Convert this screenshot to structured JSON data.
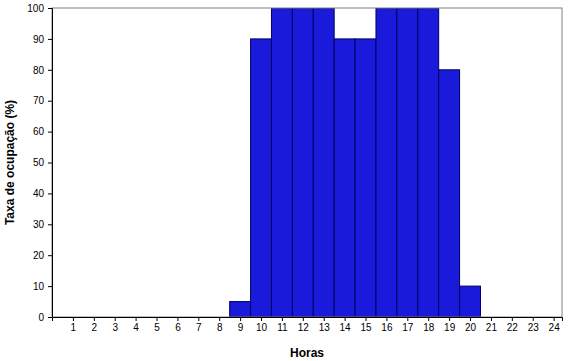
{
  "chart_data": {
    "type": "bar",
    "x_label": "Horas",
    "y_label": "Taxa de ocupação (%)",
    "x": [
      9,
      10,
      11,
      12,
      13,
      14,
      15,
      16,
      17,
      18,
      19,
      20
    ],
    "values": [
      5,
      90,
      100,
      100,
      100,
      90,
      90,
      100,
      100,
      100,
      80,
      10
    ],
    "color": "#1a1adb",
    "xlim": [
      0,
      24.4
    ],
    "xticks": [
      1,
      2,
      3,
      4,
      5,
      6,
      7,
      8,
      9,
      10,
      11,
      12,
      13,
      14,
      15,
      16,
      17,
      18,
      19,
      20,
      21,
      22,
      23,
      24
    ],
    "ylim": [
      0,
      100
    ],
    "yticks": [
      0,
      10,
      20,
      30,
      40,
      50,
      60,
      70,
      80,
      90,
      100
    ],
    "grid": false
  }
}
